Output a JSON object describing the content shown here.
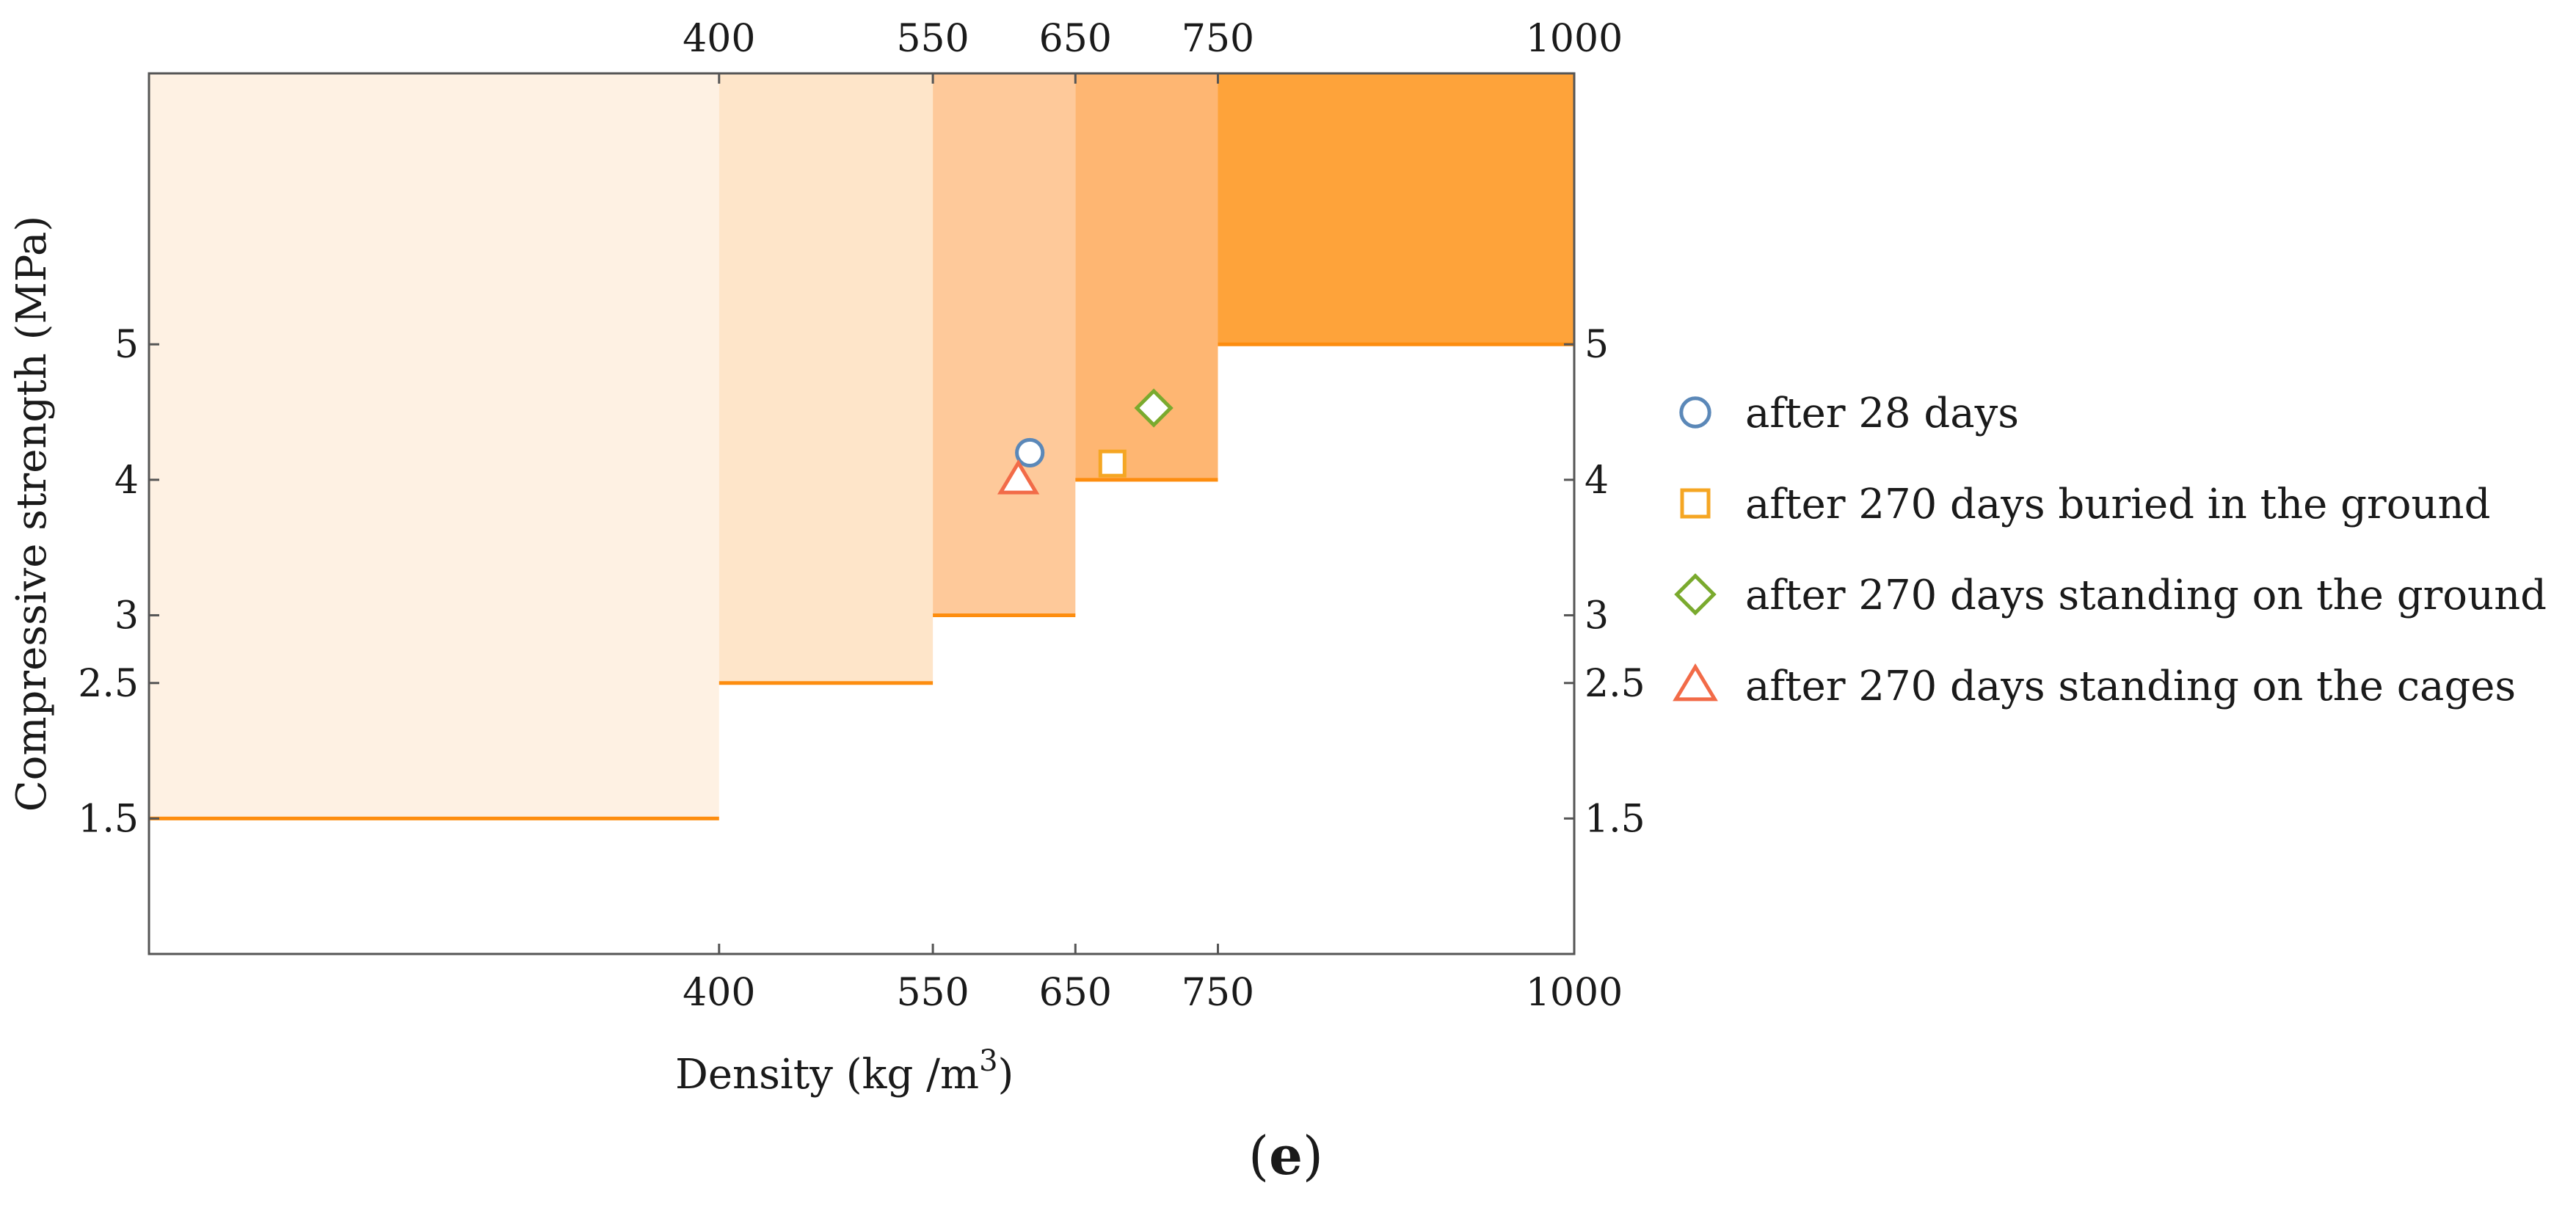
{
  "panel_label": "e",
  "chart_data": {
    "type": "scatter",
    "xlabel": "Density (kg /m",
    "xlabel_superscript": "3",
    "xlabel_close": ")",
    "ylabel": "Compressive strength (MPa)",
    "xlim": [
      0,
      1000
    ],
    "ylim": [
      0.5,
      7
    ],
    "x_ticks": [
      400,
      550,
      650,
      750,
      1000
    ],
    "x_tick_labels": [
      "400",
      "550",
      "650",
      "750",
      "1000"
    ],
    "y_ticks": [
      1.5,
      2.5,
      3,
      4,
      5
    ],
    "y_tick_labels": [
      "1.5",
      "2.5",
      "3",
      "4",
      "5"
    ],
    "regions": [
      {
        "x_min": 0,
        "x_max": 400,
        "min_strength": 1.5,
        "color": "#fef1e3"
      },
      {
        "x_min": 400,
        "x_max": 550,
        "min_strength": 2.5,
        "color": "#fee5c9"
      },
      {
        "x_min": 550,
        "x_max": 650,
        "min_strength": 3,
        "color": "#fec99a"
      },
      {
        "x_min": 650,
        "x_max": 750,
        "min_strength": 4,
        "color": "#feb672"
      },
      {
        "x_min": 750,
        "x_max": 1000,
        "min_strength": 5,
        "color": "#fea33a"
      }
    ],
    "threshold_line_color": "#fd8d0f",
    "series": [
      {
        "name": "after 28 days",
        "marker": "circle",
        "color": "#5b88b8",
        "x": 618,
        "y": 4.2
      },
      {
        "name": "after 270 days buried in the ground",
        "marker": "square",
        "color": "#f5a623",
        "x": 676,
        "y": 4.12
      },
      {
        "name": "after 270 days standing on the ground",
        "marker": "diamond",
        "color": "#7aaa2e",
        "x": 705,
        "y": 4.53
      },
      {
        "name": "after 270 days standing on the cages",
        "marker": "triangle",
        "color": "#f26b48",
        "x": 610,
        "y": 4.0
      }
    ]
  }
}
